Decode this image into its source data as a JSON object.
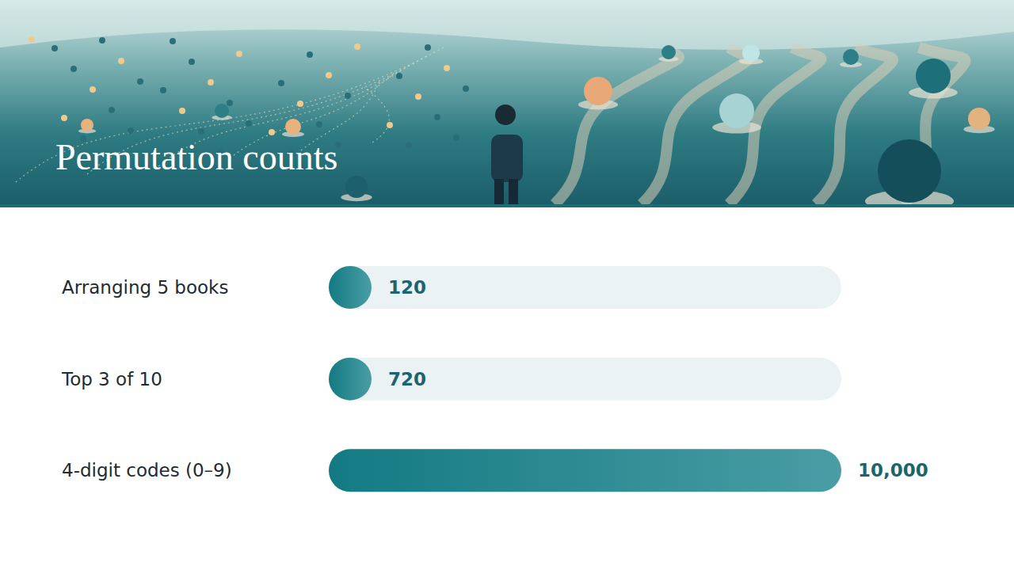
{
  "chart_data": {
    "type": "bar",
    "title": "Permutation counts",
    "orientation": "horizontal",
    "categories": [
      "Arranging 5 books",
      "Top 3 of 10",
      "4-digit codes (0–9)"
    ],
    "values": [
      120,
      720,
      10000
    ],
    "value_labels": [
      "120",
      "720",
      "10,000"
    ],
    "xlim": [
      0,
      10000
    ],
    "color": "#137a83",
    "data_labels": true,
    "tick_labels": "y",
    "grid": false
  }
}
